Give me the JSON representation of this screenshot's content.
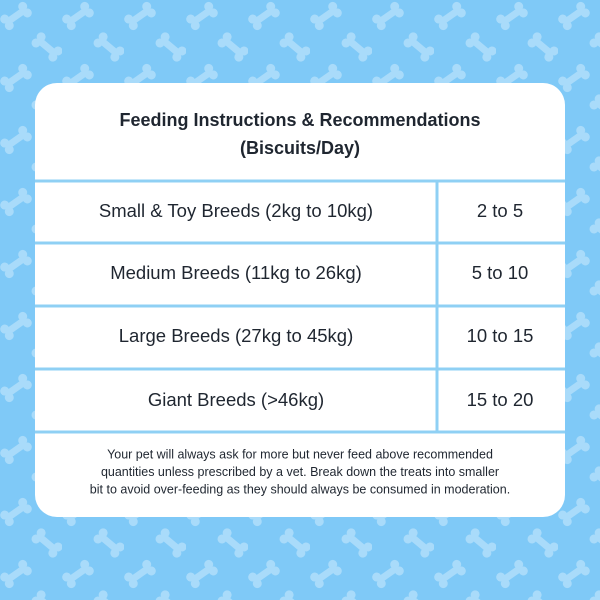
{
  "header": {
    "title_lines": [
      "Feeding Instructions & Recommendations",
      "(Biscuits/Day)"
    ]
  },
  "table": {
    "rows": [
      [
        "Small & Toy Breeds (2kg to 10kg)",
        "2 to 5"
      ],
      [
        "Medium Breeds (11kg to 26kg)",
        "5 to 10"
      ],
      [
        "Large Breeds (27kg to 45kg)",
        "10 to 15"
      ],
      [
        "Giant Breeds (>46kg)",
        "15 to 20"
      ]
    ]
  },
  "footer": {
    "lines": [
      "Your pet will always ask for more but never feed above recommended",
      "quantities unless prescribed by a vet. Break down the treats into smaller",
      "bit to avoid over-feeding as they should always be consumed in moderation."
    ]
  }
}
